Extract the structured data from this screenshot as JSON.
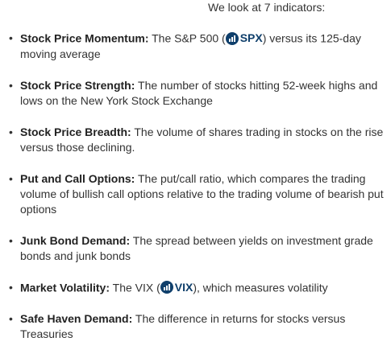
{
  "intro": "We look at 7 indicators:",
  "bullet": "•",
  "items": [
    {
      "term": "Stock Price Momentum:",
      "pre": " The S&P 500 (",
      "ticker": "SPX",
      "post": ") versus its 125-day moving average"
    },
    {
      "term": "Stock Price Strength:",
      "text": " The number of stocks hitting 52-week highs and lows on the New York Stock Exchange"
    },
    {
      "term": "Stock Price Breadth:",
      "text": " The volume of shares trading in stocks on the rise versus those declining."
    },
    {
      "term": "Put and Call Options:",
      "text": " The put/call ratio, which compares the trading volume of bullish call options relative to the trading volume of bearish put options"
    },
    {
      "term": "Junk Bond Demand:",
      "text": " The spread between yields on investment grade bonds and junk bonds"
    },
    {
      "term": "Market Volatility:",
      "pre": " The VIX (",
      "ticker": "VIX",
      "post": "), which measures volatility"
    },
    {
      "term": "Safe Haven Demand:",
      "text": " The difference in returns for stocks versus Treasuries"
    }
  ],
  "colors": {
    "text": "#333333",
    "ticker": "#0f3f6b"
  },
  "icons": {
    "ticker": "bar-chart-circle-icon"
  }
}
